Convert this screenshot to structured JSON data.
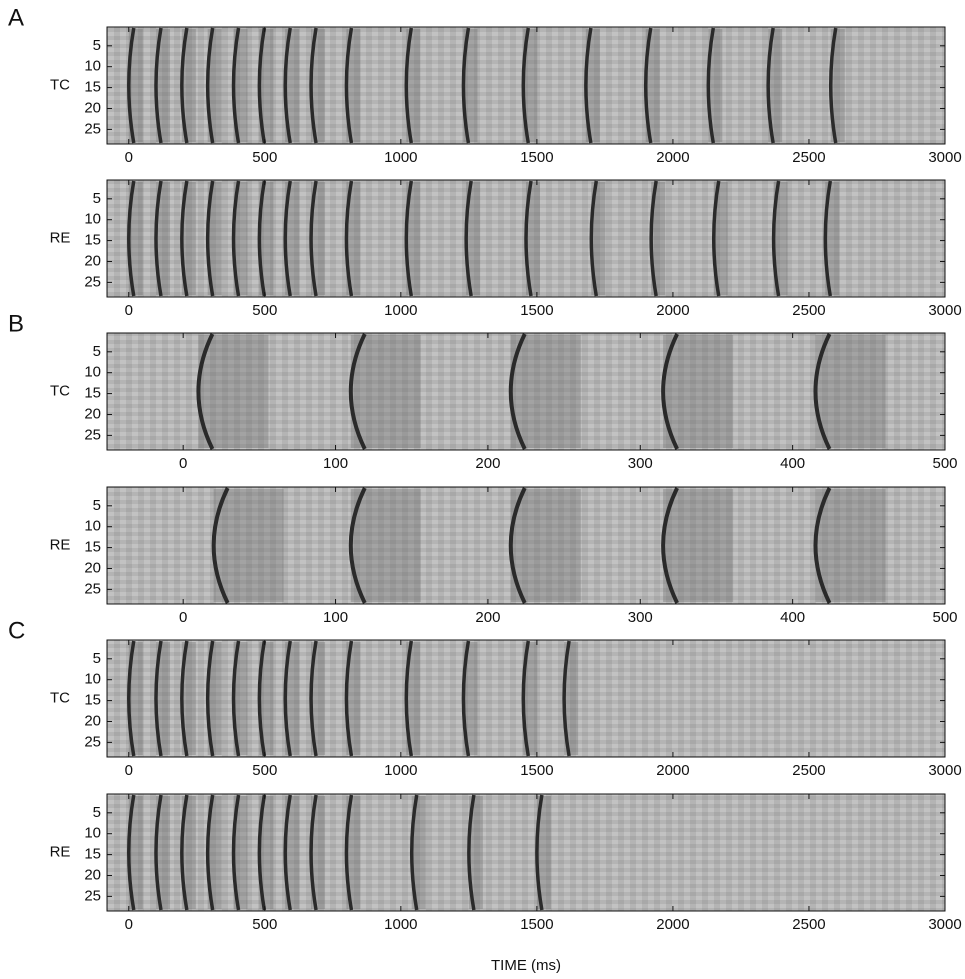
{
  "chart_data": [
    {
      "type": "raster",
      "panel": "A",
      "ylabel": "TC",
      "xlim": [
        -80,
        3000
      ],
      "xticks": [
        0,
        500,
        1000,
        1500,
        2000,
        2500,
        3000
      ],
      "ylim": [
        0.5,
        28.5
      ],
      "yticks": [
        5,
        10,
        15,
        20,
        25
      ],
      "bursts": [
        0,
        100,
        195,
        290,
        385,
        480,
        575,
        670,
        800,
        1020,
        1230,
        1450,
        1680,
        1900,
        2130,
        2350,
        2580
      ]
    },
    {
      "type": "raster",
      "ylabel": "RE",
      "xlim": [
        -80,
        3000
      ],
      "xticks": [
        0,
        500,
        1000,
        1500,
        2000,
        2500,
        3000
      ],
      "ylim": [
        0.5,
        28.5
      ],
      "yticks": [
        5,
        10,
        15,
        20,
        25
      ],
      "bursts": [
        0,
        100,
        195,
        290,
        385,
        480,
        575,
        670,
        800,
        1020,
        1240,
        1460,
        1700,
        1920,
        2150,
        2370,
        2560
      ]
    },
    {
      "type": "raster",
      "panel": "B",
      "ylabel": "TC",
      "xlim": [
        -50,
        500
      ],
      "xticks": [
        0,
        100,
        200,
        300,
        400,
        500
      ],
      "ylim": [
        0.5,
        28.5
      ],
      "yticks": [
        5,
        10,
        15,
        20,
        25
      ],
      "bursts": [
        10,
        110,
        215,
        315,
        415
      ]
    },
    {
      "type": "raster",
      "ylabel": "RE",
      "xlim": [
        -50,
        500
      ],
      "xticks": [
        0,
        100,
        200,
        300,
        400,
        500
      ],
      "ylim": [
        0.5,
        28.5
      ],
      "yticks": [
        5,
        10,
        15,
        20,
        25
      ],
      "bursts": [
        20,
        110,
        215,
        315,
        415
      ]
    },
    {
      "type": "raster",
      "panel": "C",
      "ylabel": "TC",
      "xlim": [
        -80,
        3000
      ],
      "xticks": [
        0,
        500,
        1000,
        1500,
        2000,
        2500,
        3000
      ],
      "ylim": [
        0.5,
        28.5
      ],
      "yticks": [
        5,
        10,
        15,
        20,
        25
      ],
      "bursts": [
        0,
        100,
        195,
        290,
        385,
        480,
        575,
        670,
        800,
        1020,
        1230,
        1450,
        1600
      ]
    },
    {
      "type": "raster",
      "ylabel": "RE",
      "xlim": [
        -80,
        3000
      ],
      "xticks": [
        0,
        500,
        1000,
        1500,
        2000,
        2500,
        3000
      ],
      "ylim": [
        0.5,
        28.5
      ],
      "yticks": [
        5,
        10,
        15,
        20,
        25
      ],
      "bursts": [
        0,
        100,
        195,
        290,
        385,
        480,
        575,
        670,
        800,
        1040,
        1250,
        1500
      ],
      "xlabel": "TIME (ms)"
    }
  ]
}
